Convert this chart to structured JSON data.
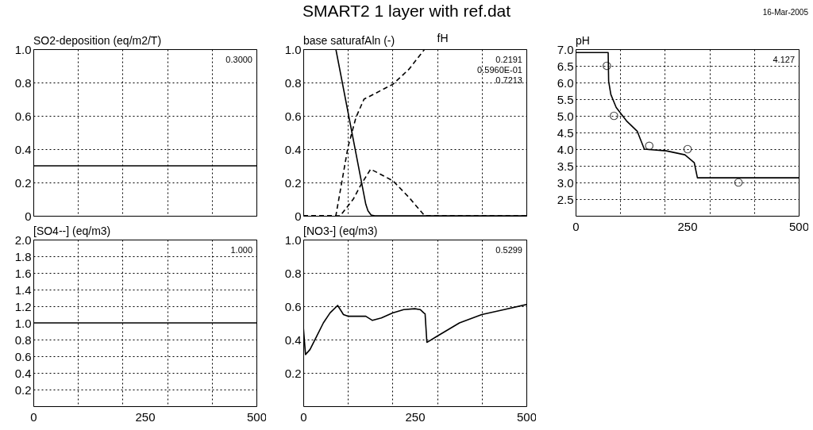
{
  "chart_data": [
    {
      "type": "other",
      "title": "SMART2 1 layer with ref.dat",
      "annotations": [
        "16-Mar-2005"
      ]
    },
    {
      "type": "line",
      "ylabel": "SO2-deposition (eq/m2/T)",
      "xlim": [
        0,
        500
      ],
      "xticks": [
        0,
        {
          "value": 100,
          "label": null
        },
        {
          "value": 200,
          "label": null
        },
        250,
        {
          "value": 300,
          "label": null
        },
        {
          "value": 400,
          "label": null
        },
        500
      ],
      "ylim": [
        0,
        1
      ],
      "yticks": [
        0,
        0.2,
        0.4,
        0.6,
        0.8,
        {
          "value": 1,
          "label": "1.0"
        }
      ],
      "grid": true,
      "tick_labels": "y",
      "annotations": [
        "0.3000"
      ],
      "series": [
        {
          "color": "#000000",
          "line_style": "solid",
          "x": [
            0,
            500
          ],
          "values": [
            0.3,
            0.3
          ]
        }
      ]
    },
    {
      "type": "line",
      "ylabel": "base saturafAln (-)",
      "xlim": [
        0,
        500
      ],
      "xticks": [
        0,
        {
          "value": 100,
          "label": null
        },
        {
          "value": 200,
          "label": null
        },
        250,
        {
          "value": 300,
          "label": null
        },
        {
          "value": 400,
          "label": null
        },
        500
      ],
      "ylim": [
        0,
        1
      ],
      "yticks": [
        0,
        0.2,
        0.4,
        0.6,
        0.8,
        {
          "value": 1,
          "label": "1.0"
        }
      ],
      "grid": true,
      "tick_labels": "y",
      "annotations": [
        "0.2191",
        "0.5960E-01",
        "0.7213"
      ],
      "series": [
        {
          "color": "#000000",
          "line_style": "solid",
          "x": [
            0,
            73,
            140,
            145,
            152,
            160,
            500
          ],
          "values": [
            1,
            1,
            0.07,
            0.03,
            0.005,
            0,
            0
          ]
        },
        {
          "color": "#000000",
          "line_style": "dashed",
          "x": [
            0,
            73,
            100,
            118,
            136,
            151,
            201,
            237,
            272,
            500
          ],
          "values": [
            0,
            0,
            0.41,
            0.59,
            0.7,
            0.72,
            0.79,
            0.88,
            1,
            1
          ]
        },
        {
          "name": "fH",
          "color": "#000000",
          "line_style": "dashed",
          "x": [
            0,
            83,
            112,
            130,
            151,
            201,
            237,
            272,
            500
          ],
          "values": [
            0,
            0,
            0.1,
            0.19,
            0.28,
            0.21,
            0.11,
            0,
            0
          ]
        }
      ]
    },
    {
      "type": "line",
      "ylabel": "pH",
      "xlim": [
        0,
        500
      ],
      "xticks": [
        0,
        {
          "value": 100,
          "label": null
        },
        {
          "value": 200,
          "label": null
        },
        250,
        {
          "value": 300,
          "label": null
        },
        {
          "value": 400,
          "label": null
        },
        500
      ],
      "ylim": [
        2,
        7
      ],
      "yticks": [
        2.5,
        {
          "value": 3,
          "label": "3.0"
        },
        3.5,
        {
          "value": 4,
          "label": "4.0"
        },
        4.5,
        {
          "value": 5,
          "label": "5.0"
        },
        5.5,
        {
          "value": 6,
          "label": "6.0"
        },
        6.5,
        {
          "value": 7,
          "label": "7.0"
        }
      ],
      "grid": true,
      "annotations": [
        "4.127"
      ],
      "series": [
        {
          "color": "#000000",
          "line_style": "solid",
          "x": [
            0,
            73,
            74,
            79,
            91,
            114,
            138,
            154,
            203,
            245,
            266,
            273,
            500
          ],
          "values": [
            6.9,
            6.9,
            6.04,
            5.64,
            5.25,
            4.85,
            4.54,
            4.0,
            3.95,
            3.83,
            3.59,
            3.14,
            3.14
          ]
        },
        {
          "type": "scatter",
          "marker": "circle",
          "color": "#000000",
          "x": [
            70,
            86,
            165,
            251,
            365
          ],
          "values": [
            6.5,
            5.0,
            4.1,
            4.0,
            3.0
          ]
        }
      ]
    },
    {
      "type": "line",
      "ylabel": "[SO4--] (eq/m3)",
      "xlim": [
        0,
        500
      ],
      "xticks": [
        0,
        {
          "value": 100,
          "label": null
        },
        {
          "value": 200,
          "label": null
        },
        250,
        {
          "value": 300,
          "label": null
        },
        {
          "value": 400,
          "label": null
        },
        500
      ],
      "ylim": [
        0,
        2
      ],
      "yticks": [
        0.2,
        0.4,
        0.6,
        0.8,
        {
          "value": 1,
          "label": "1.0"
        },
        1.2,
        1.4,
        1.6,
        1.8,
        {
          "value": 2,
          "label": "2.0"
        }
      ],
      "grid": true,
      "annotations": [
        "1.000"
      ],
      "series": [
        {
          "color": "#000000",
          "line_style": "solid",
          "x": [
            0,
            500
          ],
          "values": [
            1,
            1
          ]
        }
      ]
    },
    {
      "type": "line",
      "ylabel": "[NO3-] (eq/m3)",
      "xlim": [
        0,
        500
      ],
      "xticks": [
        0,
        {
          "value": 100,
          "label": null
        },
        {
          "value": 200,
          "label": null
        },
        250,
        {
          "value": 300,
          "label": null
        },
        {
          "value": 400,
          "label": null
        },
        500
      ],
      "ylim": [
        0,
        1
      ],
      "yticks": [
        0.2,
        0.4,
        0.6,
        0.8,
        {
          "value": 1,
          "label": "1.0"
        }
      ],
      "grid": true,
      "annotations": [
        "0.5299"
      ],
      "series": [
        {
          "color": "#000000",
          "line_style": "solid",
          "x": [
            0,
            5,
            15,
            30,
            45,
            60,
            77,
            83,
            90,
            100,
            120,
            140,
            155,
            175,
            200,
            225,
            250,
            262,
            270,
            273,
            277,
            300,
            350,
            400,
            450,
            500
          ],
          "values": [
            0.48,
            0.31,
            0.34,
            0.42,
            0.5,
            0.56,
            0.605,
            0.58,
            0.55,
            0.54,
            0.54,
            0.54,
            0.515,
            0.53,
            0.56,
            0.58,
            0.585,
            0.58,
            0.56,
            0.554,
            0.383,
            0.42,
            0.5,
            0.55,
            0.58,
            0.61
          ]
        }
      ]
    }
  ]
}
